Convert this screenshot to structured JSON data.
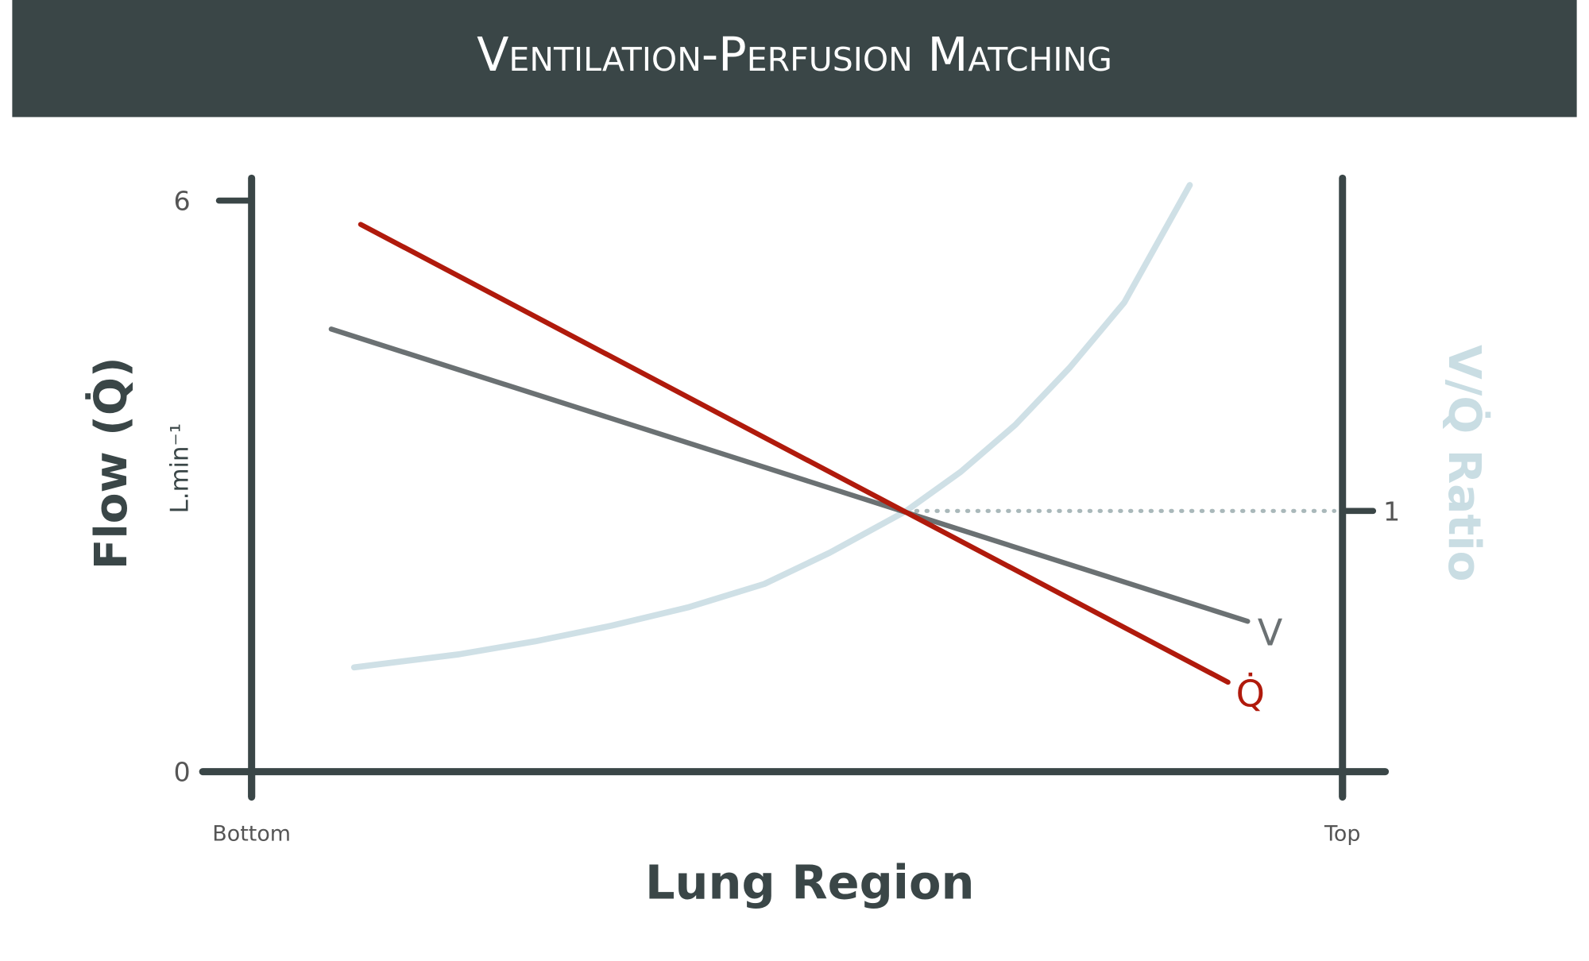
{
  "chart_data": {
    "type": "line",
    "title": "Ventilation-Perfusion Matching",
    "xlabel": "Lung Region",
    "ylabel": "Flow (Q̇)",
    "yunit": "L.min⁻¹",
    "y2label": "V/Q̇ Ratio",
    "xlim": [
      0,
      1
    ],
    "xticks": [
      {
        "value": 0,
        "label": "Bottom"
      },
      {
        "value": 1,
        "label": "Top"
      }
    ],
    "ylim": [
      0,
      6.3
    ],
    "yticks": [
      0,
      6
    ],
    "y2lim": [
      0,
      2.3
    ],
    "y2ticks": [
      1
    ],
    "series": [
      {
        "name": "V",
        "color": "#6b7173",
        "x": [
          0.073,
          0.913
        ],
        "values": [
          4.65,
          1.58
        ]
      },
      {
        "name": "Q̇",
        "color": "#b01a0c",
        "x": [
          0.1,
          0.895
        ],
        "values": [
          5.75,
          0.94
        ]
      },
      {
        "color": "#cfe0e6",
        "axis": "y2",
        "x": [
          0.094,
          0.19,
          0.26,
          0.33,
          0.4,
          0.47,
          0.53,
          0.6,
          0.65,
          0.7,
          0.75,
          0.8,
          0.86
        ],
        "values": [
          0.4,
          0.45,
          0.5,
          0.56,
          0.63,
          0.72,
          0.84,
          1.0,
          1.15,
          1.33,
          1.55,
          1.8,
          2.25
        ]
      }
    ]
  }
}
